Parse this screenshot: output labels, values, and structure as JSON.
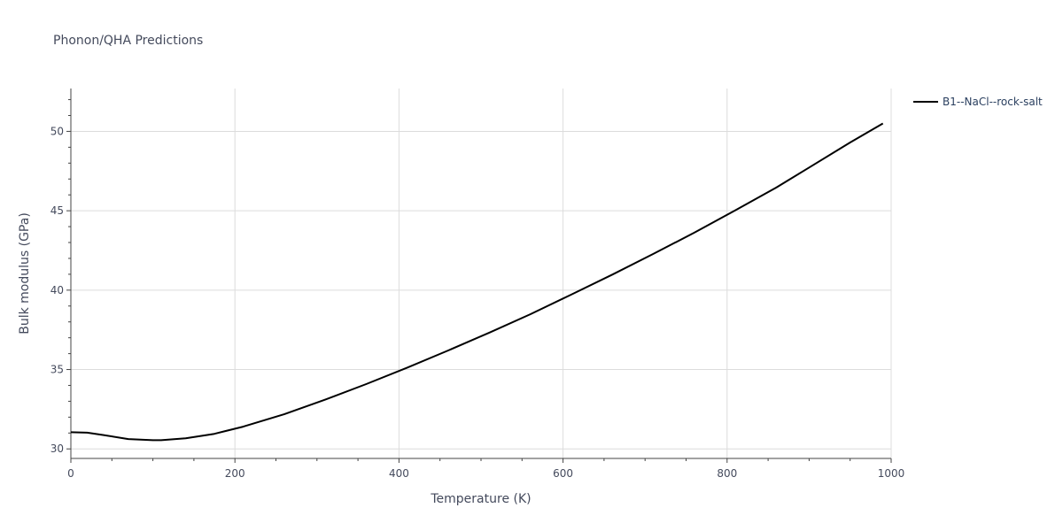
{
  "chart_data": {
    "type": "line",
    "title": "Phonon/QHA Predictions",
    "xlabel": "Temperature (K)",
    "ylabel": "Bulk modulus (GPa)",
    "xlim": [
      0,
      1000
    ],
    "ylim": [
      29.4,
      52.7
    ],
    "x_ticks": [
      0,
      200,
      400,
      600,
      800,
      1000
    ],
    "y_ticks": [
      30,
      35,
      40,
      45,
      50
    ],
    "x_tick_labels": [
      "0",
      "200",
      "400",
      "600",
      "800",
      "1000"
    ],
    "y_tick_labels": [
      "30",
      "35",
      "40",
      "45",
      "50"
    ],
    "grid": true,
    "legend_position": "top-right",
    "series": [
      {
        "name": "B1--NaCl--rock-salt",
        "color": "#000000",
        "x": [
          0,
          20,
          40,
          70,
          100,
          110,
          140,
          175,
          210,
          260,
          310,
          360,
          410,
          460,
          510,
          560,
          610,
          660,
          710,
          760,
          810,
          860,
          900,
          950,
          990
        ],
        "y": [
          31.05,
          31.02,
          30.87,
          30.62,
          30.55,
          30.55,
          30.67,
          30.95,
          31.4,
          32.18,
          33.1,
          34.08,
          35.12,
          36.2,
          37.32,
          38.48,
          39.72,
          40.98,
          42.28,
          43.62,
          45.03,
          46.46,
          47.72,
          49.3,
          50.5
        ]
      }
    ]
  }
}
